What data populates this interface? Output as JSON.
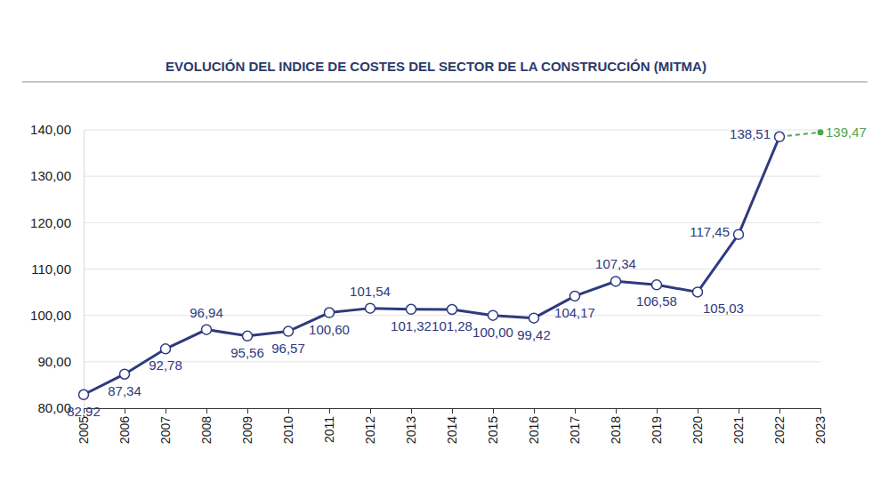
{
  "chart_data": {
    "type": "line",
    "title": "EVOLUCIÓN DEL INDICE DE COSTES DEL SECTOR DE LA CONSTRUCCIÓN (MITMA)",
    "categories": [
      "2005",
      "2006",
      "2007",
      "2008",
      "2009",
      "2010",
      "2011",
      "2012",
      "2013",
      "2014",
      "2015",
      "2016",
      "2017",
      "2018",
      "2019",
      "2020",
      "2021",
      "2022",
      "2023"
    ],
    "series": [
      {
        "color": "#2e3a7e",
        "marker": "circle",
        "line_style": "solid",
        "values": [
          82.92,
          87.34,
          92.78,
          96.94,
          95.56,
          96.57,
          100.6,
          101.54,
          101.32,
          101.28,
          100.0,
          99.42,
          104.17,
          107.34,
          106.58,
          105.03,
          117.45,
          138.51,
          null
        ],
        "value_labels": [
          "82,92",
          "87,34",
          "92,78",
          "96,94",
          "95,56",
          "96,57",
          "100,60",
          "101,54",
          "101,32",
          "101,28",
          "100,00",
          "99,42",
          "104,17",
          "107,34",
          "106,58",
          "105,03",
          "117,45",
          "138,51",
          null
        ]
      },
      {
        "color": "#4ca64c",
        "marker": "dot",
        "line_style": "dashed",
        "values": [
          null,
          null,
          null,
          null,
          null,
          null,
          null,
          null,
          null,
          null,
          null,
          null,
          null,
          null,
          null,
          null,
          null,
          138.51,
          139.47
        ],
        "value_labels": [
          null,
          null,
          null,
          null,
          null,
          null,
          null,
          null,
          null,
          null,
          null,
          null,
          null,
          null,
          null,
          null,
          null,
          null,
          "139,47"
        ]
      }
    ],
    "ylim": [
      80,
      140
    ],
    "yticks": [
      {
        "value": 80,
        "label": "80,00"
      },
      {
        "value": 90,
        "label": "90,00"
      },
      {
        "value": 100,
        "label": "100,00"
      },
      {
        "value": 110,
        "label": "110,00"
      },
      {
        "value": 120,
        "label": "120,00"
      },
      {
        "value": 130,
        "label": "130,00"
      },
      {
        "value": 140,
        "label": "140,00"
      }
    ],
    "grid": true,
    "data_labels": true
  }
}
